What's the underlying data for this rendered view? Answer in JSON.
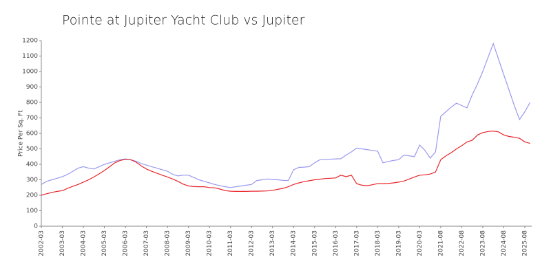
{
  "chart_data": {
    "type": "line",
    "title": "Pointe at Jupiter Yacht Club vs Jupiter",
    "y_label": "Price Per Sq. Ft",
    "categories": [
      "2002-03",
      null,
      null,
      null,
      "2003-03",
      null,
      null,
      null,
      "2004-03",
      null,
      null,
      null,
      "2005-03",
      null,
      null,
      null,
      "2006-03",
      null,
      null,
      null,
      "2007-03",
      null,
      null,
      null,
      "2008-03",
      null,
      null,
      null,
      "2009-03",
      null,
      null,
      null,
      "2010-03",
      null,
      null,
      null,
      "2011-03",
      null,
      null,
      null,
      "2012-03",
      null,
      null,
      null,
      "2013-03",
      null,
      null,
      null,
      "2014-03",
      null,
      null,
      null,
      "2015-03",
      null,
      null,
      null,
      "2016-03",
      null,
      null,
      null,
      "2017-03",
      null,
      null,
      null,
      "2018-03",
      null,
      null,
      null,
      "2019-03",
      null,
      null,
      null,
      "2020-03",
      null,
      null,
      null,
      "2021-08",
      null,
      null,
      null,
      "2022-08",
      null,
      null,
      null,
      "2023-08",
      null,
      null,
      null,
      "2024-08",
      null,
      null,
      null,
      "2025-08",
      null
    ],
    "series": [
      {
        "color": "#9999ee",
        "values": [
          270,
          290,
          300,
          310,
          320,
          335,
          355,
          375,
          385,
          375,
          370,
          385,
          400,
          410,
          420,
          430,
          435,
          430,
          420,
          405,
          395,
          385,
          375,
          365,
          355,
          335,
          325,
          330,
          330,
          315,
          300,
          290,
          280,
          270,
          262,
          255,
          250,
          255,
          260,
          265,
          270,
          295,
          300,
          305,
          302,
          300,
          296,
          295,
          365,
          380,
          382,
          385,
          410,
          430,
          432,
          433,
          435,
          436,
          460,
          480,
          505,
          500,
          495,
          490,
          485,
          410,
          418,
          425,
          430,
          460,
          455,
          450,
          525,
          490,
          440,
          480,
          710,
          740,
          770,
          795,
          780,
          765,
          850,
          920,
          1000,
          1090,
          1180,
          1080,
          980,
          880,
          780,
          690,
          740,
          800
        ]
      },
      {
        "color": "#e8252a",
        "values": [
          200,
          210,
          218,
          225,
          230,
          245,
          258,
          270,
          285,
          300,
          318,
          338,
          360,
          385,
          410,
          425,
          432,
          430,
          415,
          390,
          370,
          355,
          342,
          330,
          318,
          305,
          290,
          272,
          260,
          256,
          255,
          255,
          250,
          248,
          240,
          230,
          226,
          225,
          225,
          225,
          226,
          226,
          227,
          228,
          232,
          238,
          245,
          255,
          270,
          280,
          288,
          294,
          300,
          304,
          308,
          310,
          312,
          330,
          320,
          330,
          275,
          265,
          262,
          268,
          275,
          275,
          276,
          280,
          285,
          292,
          305,
          318,
          330,
          332,
          337,
          350,
          430,
          455,
          475,
          500,
          520,
          545,
          555,
          590,
          605,
          612,
          615,
          610,
          590,
          580,
          575,
          568,
          545,
          535
        ]
      }
    ],
    "ylim": [
      0,
      1200
    ],
    "yticks": [
      0,
      100,
      200,
      300,
      400,
      500,
      600,
      700,
      800,
      900,
      1000,
      1100,
      1200
    ],
    "grid": false
  }
}
